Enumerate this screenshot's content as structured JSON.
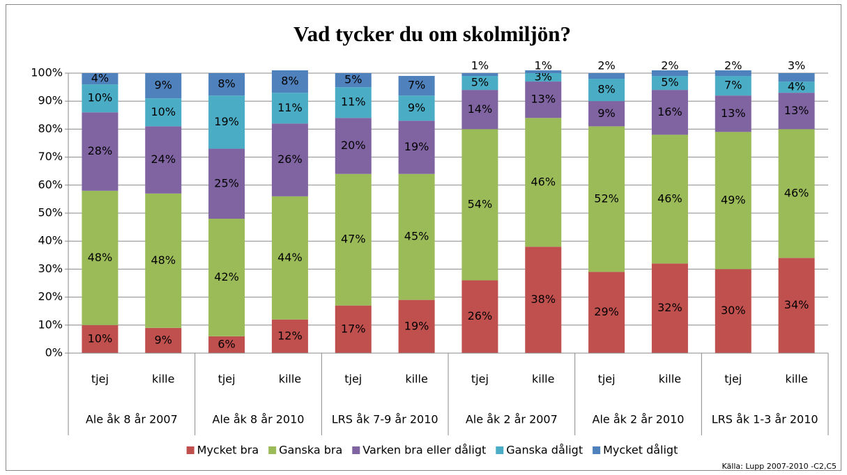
{
  "chart_data": {
    "type": "stacked_bar",
    "title": "Vad tycker du om skolmiljön?",
    "categories": [
      "tjej",
      "kille",
      "tjej",
      "kille",
      "tjej",
      "kille",
      "tjej",
      "kille",
      "tjej",
      "kille",
      "tjej",
      "kille"
    ],
    "groups": [
      "Ale åk 8 år 2007",
      "Ale åk 8 år 2010",
      "LRS åk 7-9 år 2010",
      "Ale åk 2 år 2007",
      "Ale åk 2 år 2010",
      "LRS åk 1-3 år 2010"
    ],
    "series": [
      {
        "name": "Mycket bra",
        "color": "#c0504d",
        "values": [
          10,
          9,
          6,
          12,
          17,
          19,
          26,
          38,
          29,
          32,
          30,
          34
        ],
        "value_labels": [
          "10%",
          "9%",
          "6%",
          "12%",
          "17%",
          "19%",
          "26%",
          "38%",
          "29%",
          "32%",
          "30%",
          "34%"
        ]
      },
      {
        "name": "Ganska bra",
        "color": "#9bbb59",
        "values": [
          48,
          48,
          42,
          44,
          47,
          45,
          54,
          46,
          52,
          46,
          49,
          46
        ],
        "value_labels": [
          "48%",
          "48%",
          "42%",
          "44%",
          "47%",
          "45%",
          "54%",
          "46%",
          "52%",
          "46%",
          "49%",
          "46%"
        ]
      },
      {
        "name": "Varken bra eller dåligt",
        "color": "#8064a2",
        "values": [
          28,
          24,
          25,
          26,
          20,
          19,
          14,
          13,
          9,
          16,
          13,
          13
        ],
        "value_labels": [
          "28%",
          "24%",
          "25%",
          "26%",
          "20%",
          "19%",
          "14%",
          "13%",
          "9%",
          "16%",
          "13%",
          "13%"
        ]
      },
      {
        "name": "Ganska dåligt",
        "color": "#4bacc6",
        "values": [
          10,
          10,
          19,
          11,
          11,
          9,
          5,
          3,
          8,
          5,
          7,
          4
        ],
        "value_labels": [
          "10%",
          "10%",
          "19%",
          "11%",
          "11%",
          "9%",
          "5%",
          "3%",
          "8%",
          "5%",
          "7%",
          "4%"
        ]
      },
      {
        "name": "Mycket dåligt",
        "color": "#4f81bd",
        "values": [
          4,
          9,
          8,
          8,
          5,
          7,
          1,
          1,
          2,
          2,
          2,
          3
        ],
        "value_labels": [
          "4%",
          "9%",
          "8%",
          "8%",
          "5%",
          "7%",
          "1%",
          "1%",
          "2%",
          "2%",
          "2%",
          "3%"
        ]
      }
    ],
    "ylim": [
      0,
      100
    ],
    "yticks": [
      {
        "value": 0,
        "label": "0%"
      },
      {
        "value": 10,
        "label": "10%"
      },
      {
        "value": 20,
        "label": "20%"
      },
      {
        "value": 30,
        "label": "30%"
      },
      {
        "value": 40,
        "label": "40%"
      },
      {
        "value": 50,
        "label": "50%"
      },
      {
        "value": 60,
        "label": "60%"
      },
      {
        "value": 70,
        "label": "70%"
      },
      {
        "value": 80,
        "label": "80%"
      },
      {
        "value": 90,
        "label": "90%"
      },
      {
        "value": 100,
        "label": "100%"
      }
    ],
    "grid": true,
    "legend": "bottom",
    "source": "Källa: Lupp 2007-2010 -C2,C5"
  }
}
